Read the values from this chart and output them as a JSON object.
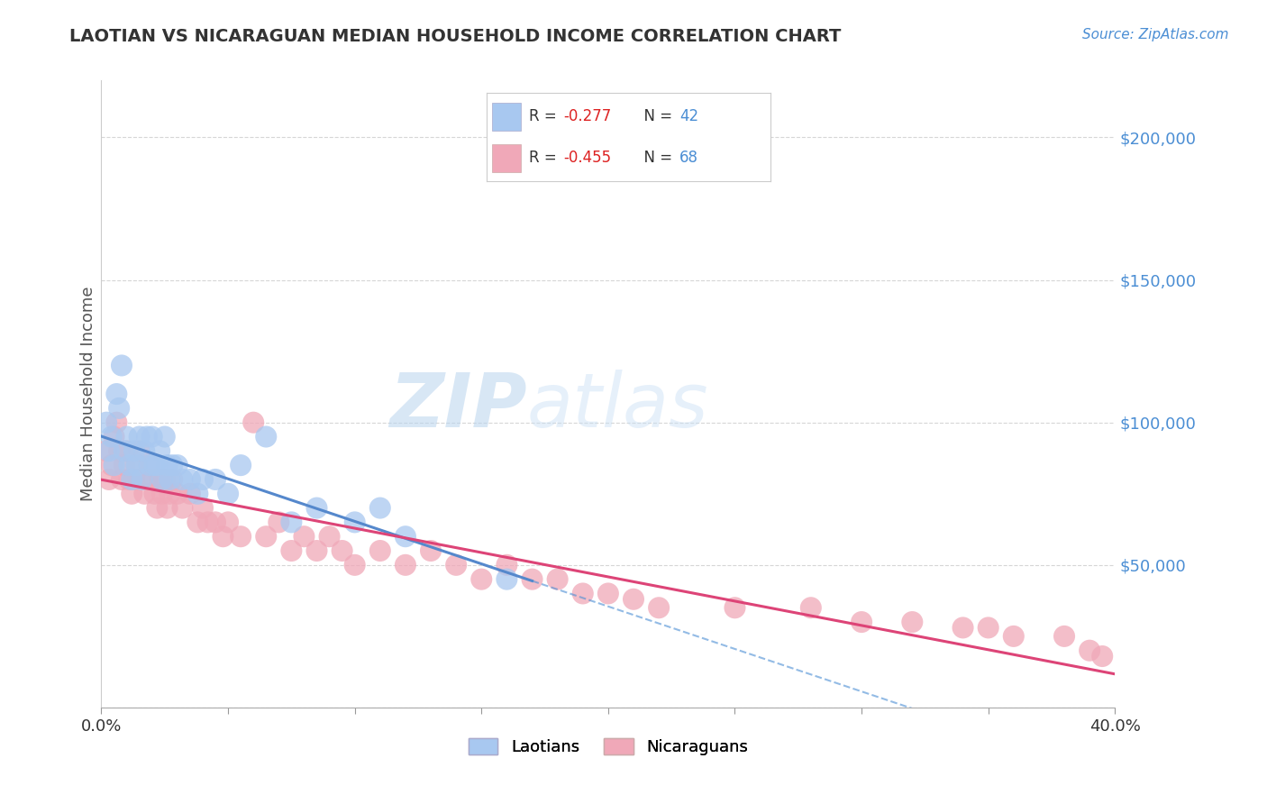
{
  "title": "LAOTIAN VS NICARAGUAN MEDIAN HOUSEHOLD INCOME CORRELATION CHART",
  "source": "Source: ZipAtlas.com",
  "ylabel": "Median Household Income",
  "laotian": {
    "R": -0.277,
    "N": 42,
    "color_scatter": "#a8c8f0",
    "color_line": "#5588cc",
    "label": "Laotians",
    "x": [
      0.002,
      0.003,
      0.004,
      0.005,
      0.006,
      0.007,
      0.008,
      0.009,
      0.01,
      0.011,
      0.012,
      0.013,
      0.014,
      0.015,
      0.016,
      0.017,
      0.018,
      0.019,
      0.02,
      0.021,
      0.022,
      0.023,
      0.024,
      0.025,
      0.026,
      0.027,
      0.028,
      0.03,
      0.032,
      0.035,
      0.038,
      0.04,
      0.045,
      0.05,
      0.055,
      0.065,
      0.075,
      0.085,
      0.1,
      0.11,
      0.12,
      0.16
    ],
    "y": [
      100000,
      90000,
      95000,
      85000,
      110000,
      105000,
      120000,
      90000,
      95000,
      85000,
      80000,
      90000,
      85000,
      95000,
      80000,
      90000,
      95000,
      85000,
      95000,
      85000,
      85000,
      90000,
      80000,
      95000,
      85000,
      80000,
      85000,
      85000,
      80000,
      80000,
      75000,
      80000,
      80000,
      75000,
      85000,
      95000,
      65000,
      70000,
      65000,
      70000,
      60000,
      45000
    ]
  },
  "nicaraguan": {
    "R": -0.455,
    "N": 68,
    "color_scatter": "#f0a8b8",
    "color_line": "#dd4477",
    "label": "Nicaraguans",
    "x": [
      0.002,
      0.003,
      0.004,
      0.005,
      0.006,
      0.007,
      0.008,
      0.009,
      0.01,
      0.011,
      0.012,
      0.013,
      0.014,
      0.015,
      0.016,
      0.017,
      0.018,
      0.019,
      0.02,
      0.021,
      0.022,
      0.023,
      0.024,
      0.025,
      0.026,
      0.027,
      0.028,
      0.03,
      0.032,
      0.035,
      0.038,
      0.04,
      0.042,
      0.045,
      0.048,
      0.05,
      0.055,
      0.06,
      0.065,
      0.07,
      0.075,
      0.08,
      0.085,
      0.09,
      0.095,
      0.1,
      0.11,
      0.12,
      0.13,
      0.14,
      0.15,
      0.16,
      0.17,
      0.18,
      0.19,
      0.2,
      0.21,
      0.22,
      0.25,
      0.28,
      0.3,
      0.32,
      0.34,
      0.35,
      0.36,
      0.38,
      0.39,
      0.395
    ],
    "y": [
      90000,
      80000,
      85000,
      95000,
      100000,
      90000,
      80000,
      85000,
      90000,
      80000,
      75000,
      80000,
      85000,
      90000,
      80000,
      75000,
      80000,
      85000,
      80000,
      75000,
      70000,
      80000,
      75000,
      80000,
      70000,
      75000,
      80000,
      75000,
      70000,
      75000,
      65000,
      70000,
      65000,
      65000,
      60000,
      65000,
      60000,
      100000,
      60000,
      65000,
      55000,
      60000,
      55000,
      60000,
      55000,
      50000,
      55000,
      50000,
      55000,
      50000,
      45000,
      50000,
      45000,
      45000,
      40000,
      40000,
      38000,
      35000,
      35000,
      35000,
      30000,
      30000,
      28000,
      28000,
      25000,
      25000,
      20000,
      18000
    ]
  },
  "xlim": [
    0.0,
    0.4
  ],
  "ylim": [
    0,
    220000
  ],
  "yticks": [
    0,
    50000,
    100000,
    150000,
    200000
  ],
  "ytick_labels": [
    "",
    "$50,000",
    "$100,000",
    "$150,000",
    "$200,000"
  ],
  "lao_line_xrange": [
    0.0,
    0.17
  ],
  "lao_dash_xrange": [
    0.17,
    0.4
  ],
  "nic_line_xrange": [
    0.0,
    0.4
  ],
  "background_color": "#ffffff",
  "grid_color": "#cccccc",
  "title_color": "#333333",
  "source_color": "#4b8ed4",
  "watermark_color": "#c8dff5",
  "legend_r_color": "#dd2222"
}
